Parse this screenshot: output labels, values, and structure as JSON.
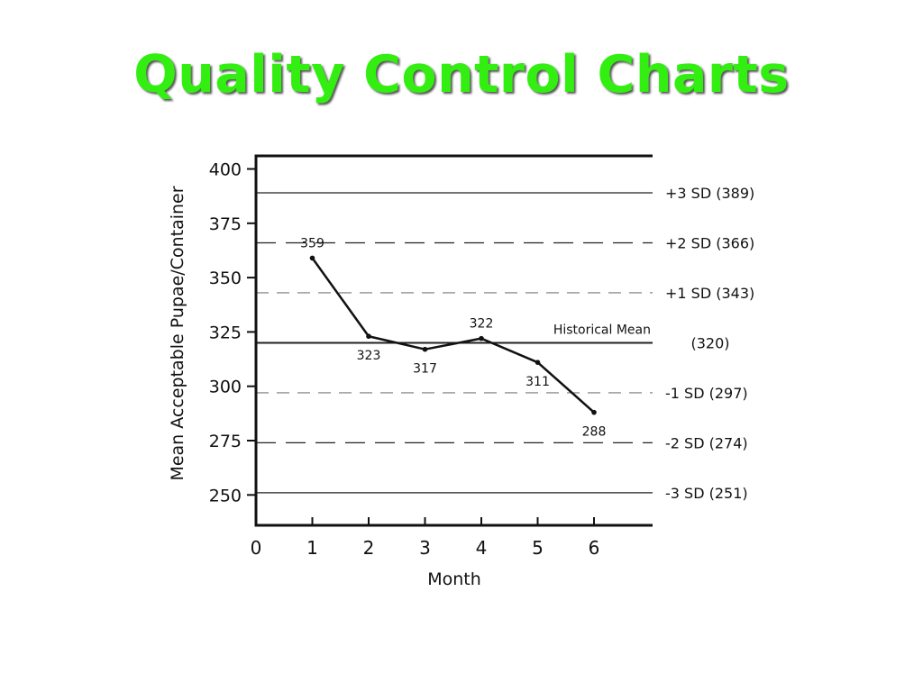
{
  "title": "Quality Control Charts",
  "chart_data": {
    "type": "line",
    "title": "Quality Control Charts",
    "xlabel": "Month",
    "ylabel": "Mean Acceptable Pupae/Container",
    "xlim": [
      0,
      7
    ],
    "ylim": [
      235,
      405
    ],
    "x_ticks": [
      "0",
      "1",
      "2",
      "3",
      "4",
      "5",
      "6"
    ],
    "y_ticks": [
      "250",
      "275",
      "300",
      "325",
      "350",
      "375",
      "400"
    ],
    "grid": false,
    "legend": "none",
    "series": [
      {
        "x": [
          1,
          2,
          3,
          4,
          5,
          6
        ],
        "y": [
          359,
          323,
          317,
          322,
          311,
          288
        ],
        "labels": [
          "359",
          "323",
          "317",
          "322",
          "311",
          "288"
        ]
      }
    ],
    "control_lines": [
      {
        "value": 389,
        "label": "+3 SD (389)",
        "style": "solid"
      },
      {
        "value": 366,
        "label": "+2 SD (366)",
        "style": "long-dash"
      },
      {
        "value": 343,
        "label": "+1 SD (343)",
        "style": "short-dash"
      },
      {
        "value": 320,
        "label": "(320)",
        "caption": "Historical Mean",
        "style": "solid-bold"
      },
      {
        "value": 297,
        "label": "-1 SD (297)",
        "style": "short-dash"
      },
      {
        "value": 274,
        "label": "-2 SD (274)",
        "style": "long-dash"
      },
      {
        "value": 251,
        "label": "-3 SD (251)",
        "style": "solid"
      }
    ],
    "colors": {
      "title": "#33ee11",
      "line": "#111111"
    }
  }
}
